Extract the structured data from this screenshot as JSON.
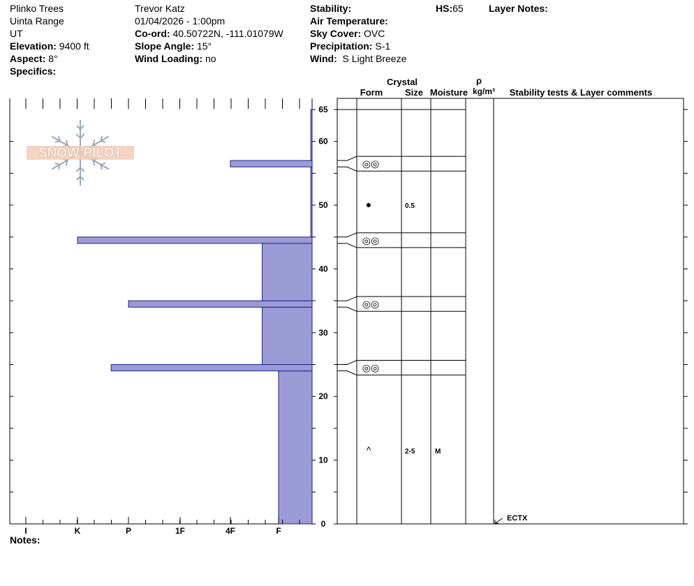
{
  "header": {
    "col1": [
      "Plinko Trees",
      "Uinta Range",
      "UT"
    ],
    "elevation": {
      "label": "Elevation:",
      "value": "9400 ft"
    },
    "aspect": {
      "label": "Aspect:",
      "value": "8°"
    },
    "specifics": {
      "label": "Specifics:",
      "value": ""
    },
    "observer": "Trevor Katz",
    "datetime": "01/04/2026 - 1:00pm",
    "coord": {
      "label": "Co-ord:",
      "value": "40.50722N, -111.01079W"
    },
    "slope": {
      "label": "Slope Angle:",
      "value": "15°"
    },
    "wind_loading": {
      "label": "Wind Loading:",
      "value": "no"
    },
    "stability": {
      "label": "Stability:",
      "value": ""
    },
    "air_temp": {
      "label": "Air Temperature:",
      "value": ""
    },
    "sky": {
      "label": "Sky Cover:",
      "value": "OVC"
    },
    "precip": {
      "label": "Precipitation:",
      "value": "S-1"
    },
    "wind": {
      "label": "Wind:",
      "value": "S Light Breeze"
    },
    "hs": {
      "label": "HS:",
      "value": "65"
    },
    "layer_notes": {
      "label": "Layer Notes:",
      "value": ""
    }
  },
  "logo": {
    "text": "SNOW PILOT"
  },
  "table_headers": {
    "crystal": "Crystal",
    "form": "Form",
    "size": "Size",
    "moisture": "Moisture",
    "rho": "ρ",
    "density_unit": "kg/m³",
    "stability_comments": "Stability tests & Layer comments"
  },
  "notes": {
    "label": "Notes:",
    "value": ""
  },
  "colors": {
    "bar_fill": "#9b9bd6",
    "bar_stroke": "#1f1f8a"
  },
  "chart_data": {
    "type": "bar",
    "title": "",
    "orientation": "horizontal",
    "y_axis": {
      "label": "",
      "range": [
        0,
        65
      ],
      "ticks": [
        0,
        10,
        20,
        30,
        40,
        50,
        60,
        65
      ]
    },
    "x_axis": {
      "label": "",
      "categories": [
        "I",
        "K",
        "P",
        "1F",
        "4F",
        "F"
      ]
    },
    "layers": [
      {
        "bottom": 0,
        "top": 24,
        "hardness": "F"
      },
      {
        "bottom": 24,
        "top": 25,
        "hardness": "K+",
        "form_symbol": "◎◎"
      },
      {
        "bottom": 25,
        "top": 34,
        "hardness": "4F+"
      },
      {
        "bottom": 34,
        "top": 35,
        "hardness": "P",
        "form_symbol": "◎◎"
      },
      {
        "bottom": 35,
        "top": 44,
        "hardness": "4F+"
      },
      {
        "bottom": 44,
        "top": 45,
        "hardness": "K",
        "form_symbol": "◎◎"
      },
      {
        "bottom": 45,
        "top": 56,
        "hardness": "F+"
      },
      {
        "bottom": 56,
        "top": 57,
        "hardness": "4F",
        "form_symbol": "◎◎"
      },
      {
        "bottom": 57,
        "top": 65,
        "hardness": "F+"
      }
    ],
    "grain_observations": [
      {
        "height": 50,
        "form_symbol": "●",
        "size": "0.5",
        "moisture": ""
      },
      {
        "height": 11.5,
        "form_symbol": "^",
        "size": "2-5",
        "moisture": "M"
      }
    ],
    "stability_tests": [
      {
        "height": 0,
        "text": "ECTX"
      }
    ]
  }
}
